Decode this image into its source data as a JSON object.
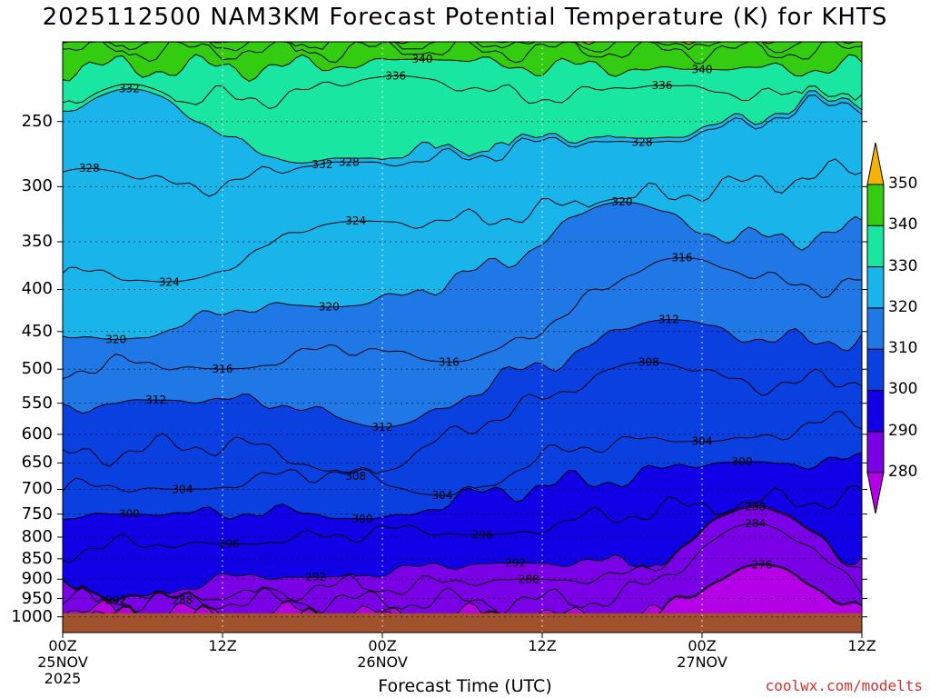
{
  "title": "2025112500 NAM3KM Forecast Potential Temperature (K) for KHTS",
  "xlabel": "Forecast Time (UTC)",
  "credit": "coolwx.com/modelts",
  "chart_data": {
    "type": "heatmap",
    "title": "2025112500 NAM3KM Forecast Potential Temperature (K) for KHTS",
    "xlabel": "Forecast Time (UTC)",
    "ylabel": "",
    "x_ticks": [
      {
        "label": "00Z",
        "sub1": "25NOV",
        "sub2": "2025",
        "hour": 0
      },
      {
        "label": "12Z",
        "sub1": "",
        "sub2": "",
        "hour": 12
      },
      {
        "label": "00Z",
        "sub1": "26NOV",
        "sub2": "",
        "hour": 24
      },
      {
        "label": "12Z",
        "sub1": "",
        "sub2": "",
        "hour": 36
      },
      {
        "label": "00Z",
        "sub1": "27NOV",
        "sub2": "",
        "hour": 48
      },
      {
        "label": "12Z",
        "sub1": "",
        "sub2": "",
        "hour": 60
      }
    ],
    "xlim_hours": [
      0,
      60
    ],
    "y_ticks": [
      250,
      300,
      350,
      400,
      450,
      500,
      550,
      600,
      650,
      700,
      750,
      800,
      850,
      900,
      950,
      1000
    ],
    "ylim_hpa": [
      1000,
      200
    ],
    "y_scale": "log-pressure",
    "colorbar": {
      "levels": [
        280,
        290,
        300,
        310,
        320,
        330,
        340,
        350
      ],
      "colors": [
        "#b400e6",
        "#7a00e6",
        "#1100e6",
        "#0a3fe0",
        "#1f78e6",
        "#19b4ea",
        "#19e6a0",
        "#33cc11",
        "#a8e61a",
        "#e6e61a",
        "#f4b400"
      ]
    },
    "contour_labels": [
      {
        "value": 340,
        "hour": 27,
        "p": 210
      },
      {
        "value": 340,
        "hour": 48,
        "p": 216
      },
      {
        "value": 336,
        "hour": 25,
        "p": 220
      },
      {
        "value": 336,
        "hour": 45,
        "p": 226
      },
      {
        "value": 332,
        "hour": 5,
        "p": 228
      },
      {
        "value": 332,
        "hour": 19.5,
        "p": 282
      },
      {
        "value": 328,
        "hour": 2,
        "p": 285
      },
      {
        "value": 328,
        "hour": 21.5,
        "p": 280
      },
      {
        "value": 328,
        "hour": 43.5,
        "p": 265
      },
      {
        "value": 324,
        "hour": 8,
        "p": 392
      },
      {
        "value": 324,
        "hour": 22,
        "p": 330
      },
      {
        "value": 320,
        "hour": 20,
        "p": 420
      },
      {
        "value": 320,
        "hour": 42,
        "p": 313
      },
      {
        "value": 320,
        "hour": 4,
        "p": 460
      },
      {
        "value": 316,
        "hour": 12,
        "p": 500
      },
      {
        "value": 316,
        "hour": 29,
        "p": 490
      },
      {
        "value": 316,
        "hour": 46.5,
        "p": 366
      },
      {
        "value": 312,
        "hour": 7,
        "p": 545
      },
      {
        "value": 312,
        "hour": 24,
        "p": 588
      },
      {
        "value": 312,
        "hour": 45.5,
        "p": 435
      },
      {
        "value": 308,
        "hour": 22,
        "p": 675
      },
      {
        "value": 308,
        "hour": 44,
        "p": 490
      },
      {
        "value": 304,
        "hour": 9,
        "p": 700
      },
      {
        "value": 304,
        "hour": 28.5,
        "p": 712
      },
      {
        "value": 304,
        "hour": 48,
        "p": 612
      },
      {
        "value": 300,
        "hour": 5,
        "p": 750
      },
      {
        "value": 300,
        "hour": 22.5,
        "p": 760
      },
      {
        "value": 300,
        "hour": 51,
        "p": 648
      },
      {
        "value": 296,
        "hour": 12.5,
        "p": 815
      },
      {
        "value": 296,
        "hour": 31.5,
        "p": 795
      },
      {
        "value": 292,
        "hour": 34,
        "p": 860
      },
      {
        "value": 292,
        "hour": 19,
        "p": 895
      },
      {
        "value": 292,
        "hour": 4,
        "p": 955
      },
      {
        "value": 288,
        "hour": 9,
        "p": 955
      },
      {
        "value": 288,
        "hour": 35,
        "p": 900
      },
      {
        "value": 288,
        "hour": 52,
        "p": 735
      },
      {
        "value": 284,
        "hour": 52,
        "p": 770
      },
      {
        "value": 276,
        "hour": 52.5,
        "p": 865
      }
    ],
    "terrain_below_hpa": 990,
    "terrain_color": "#a0522d",
    "grid": true
  }
}
